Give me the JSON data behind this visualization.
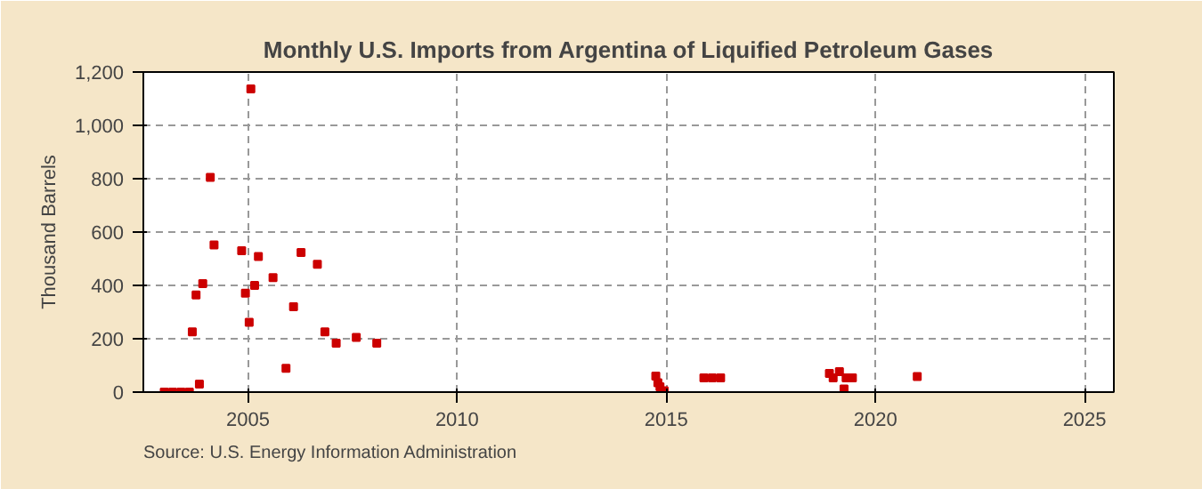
{
  "chart_data": {
    "type": "scatter",
    "title": "Monthly U.S. Imports from Argentina of Liquified Petroleum Gases",
    "ylabel": "Thousand Barrels",
    "annotations": [
      "Source: U.S. Energy Information Administration"
    ],
    "x": [
      2003.0,
      2003.2,
      2003.4,
      2003.6,
      2003.67,
      2003.76,
      2003.84,
      2003.92,
      2004.1,
      2004.19,
      2004.85,
      2004.94,
      2005.03,
      2005.07,
      2005.16,
      2005.25,
      2005.6,
      2005.91,
      2006.09,
      2006.27,
      2006.66,
      2006.84,
      2007.11,
      2007.59,
      2008.08,
      2014.75,
      2014.8,
      2014.85,
      2014.95,
      2015.9,
      2016.1,
      2016.3,
      2018.9,
      2018.99,
      2019.14,
      2019.25,
      2019.3,
      2019.45,
      2021.0
    ],
    "series": [
      {
        "color": "#cc0000",
        "values": [
          0,
          0,
          0,
          0,
          226,
          364,
          30,
          407,
          805,
          552,
          530,
          371,
          262,
          1137,
          400,
          508,
          429,
          89,
          320,
          523,
          479,
          226,
          183,
          205,
          183,
          60,
          35,
          20,
          5,
          53,
          53,
          53,
          70,
          53,
          77,
          12,
          53,
          53,
          58
        ]
      }
    ],
    "xlim": [
      2002.5,
      2025.7
    ],
    "xticks": [
      2005,
      2010,
      2015,
      2020,
      2025
    ],
    "ylim": [
      0,
      1200
    ],
    "yticks": [
      0,
      {
        "value": 200,
        "label": "200"
      },
      {
        "value": 400,
        "label": "400"
      },
      {
        "value": 600,
        "label": "600"
      },
      {
        "value": 800,
        "label": "800"
      },
      {
        "value": 1000,
        "label": "1,000"
      },
      {
        "value": 1200,
        "label": "1,200"
      }
    ],
    "grid": true,
    "marker": "square"
  }
}
